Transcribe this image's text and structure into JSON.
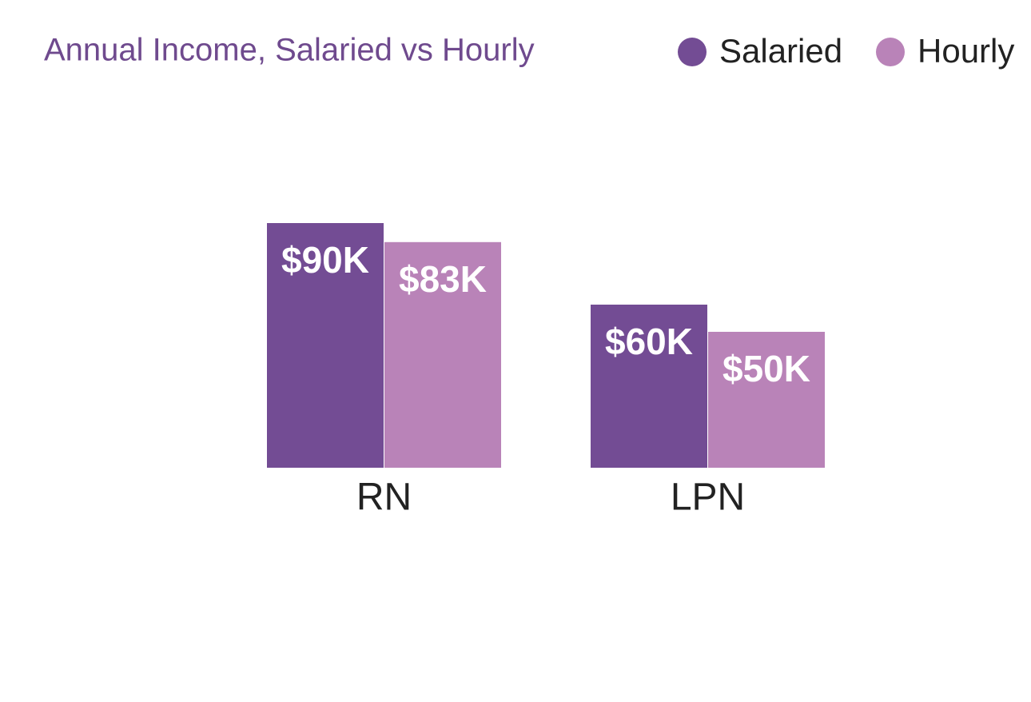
{
  "chart_data": {
    "type": "bar",
    "title": "Annual Income, Salaried vs Hourly",
    "categories": [
      "RN",
      "LPN"
    ],
    "series": [
      {
        "name": "Salaried",
        "color": "#734c94",
        "values": [
          90,
          60
        ],
        "value_labels": [
          "$90K",
          "$60K"
        ]
      },
      {
        "name": "Hourly",
        "color": "#b983b8",
        "values": [
          83,
          50
        ],
        "value_labels": [
          "$83K",
          "$50K"
        ]
      }
    ]
  }
}
